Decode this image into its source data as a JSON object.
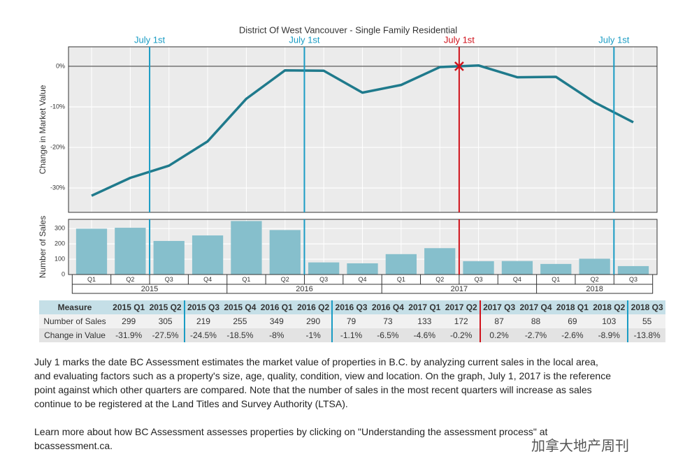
{
  "chart_data": [
    {
      "type": "line",
      "title": "District Of West Vancouver - Single Family Residential",
      "y_label": "Change in Market Value",
      "values": [
        -31.9,
        -27.5,
        -24.5,
        -18.5,
        -8,
        -1,
        -1.1,
        -6.5,
        -4.6,
        -0.2,
        0.2,
        -2.7,
        -2.6,
        -8.9,
        -13.8
      ],
      "color": "#1f7a8c",
      "ylim": [
        -36,
        4.8
      ],
      "yticks": [
        {
          "value": 0,
          "label": "0%"
        },
        {
          "value": -10,
          "label": "-10%"
        },
        {
          "value": -20,
          "label": "-20%"
        },
        {
          "value": -30,
          "label": "-30%"
        }
      ],
      "reference_line": 0,
      "grid": true,
      "markers": [
        {
          "label": "July 1st",
          "after": {
            "year": "2015",
            "quarter": "Q2"
          },
          "color": "#1a9cc4"
        },
        {
          "label": "July 1st",
          "after": {
            "year": "2016",
            "quarter": "Q2"
          },
          "color": "#1a9cc4"
        },
        {
          "label": "July 1st",
          "after": {
            "year": "2017",
            "quarter": "Q2"
          },
          "color": "#d0121b",
          "highlight": true
        },
        {
          "label": "July 1st",
          "after": {
            "year": "2018",
            "quarter": "Q2"
          },
          "color": "#1a9cc4"
        }
      ]
    },
    {
      "type": "bar",
      "y_label": "Number of Sales",
      "year_groups": [
        {
          "label": "2015",
          "categories": [
            "Q1",
            "Q2",
            "Q3",
            "Q4"
          ]
        },
        {
          "label": "2016",
          "categories": [
            "Q1",
            "Q2",
            "Q3",
            "Q4"
          ]
        },
        {
          "label": "2017",
          "categories": [
            "Q1",
            "Q2",
            "Q3",
            "Q4"
          ]
        },
        {
          "label": "2018",
          "categories": [
            "Q1",
            "Q2",
            "Q3"
          ]
        }
      ],
      "values": [
        299,
        305,
        219,
        255,
        349,
        290,
        79,
        73,
        133,
        172,
        87,
        88,
        69,
        103,
        55
      ],
      "color": "#86bfcc",
      "ylim": [
        0,
        360
      ],
      "yticks": [
        0,
        100,
        200,
        300
      ],
      "grid": true
    }
  ],
  "table": {
    "header": [
      "Measure",
      "2015 Q1",
      "2015 Q2",
      "2015 Q3",
      "2015 Q4",
      "2016 Q1",
      "2016 Q2",
      "2016 Q3",
      "2016 Q4",
      "2017 Q1",
      "2017 Q2",
      "2017 Q3",
      "2017 Q4",
      "2018 Q1",
      "2018 Q2",
      "2018 Q3"
    ],
    "rows": [
      [
        "Number of Sales",
        "299",
        "305",
        "219",
        "255",
        "349",
        "290",
        "79",
        "73",
        "133",
        "172",
        "87",
        "88",
        "69",
        "103",
        "55"
      ],
      [
        "Change in Value",
        "-31.9%",
        "-27.5%",
        "-24.5%",
        "-18.5%",
        "-8%",
        "-1%",
        "-1.1%",
        "-6.5%",
        "-4.6%",
        "-0.2%",
        "0.2%",
        "-2.7%",
        "-2.6%",
        "-8.9%",
        "-13.8%"
      ]
    ]
  },
  "notes": [
    "July 1 marks the date BC Assessment estimates the market value of properties in B.C. by analyzing current sales in the local area, and evaluating factors such as a property's size, age, quality, condition, view and location. On the graph, July 1, 2017 is the reference point against which other quarters are compared. Note that the number of sales in the most recent quarters will increase as sales continue to be registered at the Land Titles and Survey Authority (LTSA).",
    "Learn more about how BC Assessment assesses properties by clicking on \"Understanding the assessment process\" at bcassessment.ca."
  ],
  "watermark": "加拿大地产周刊"
}
